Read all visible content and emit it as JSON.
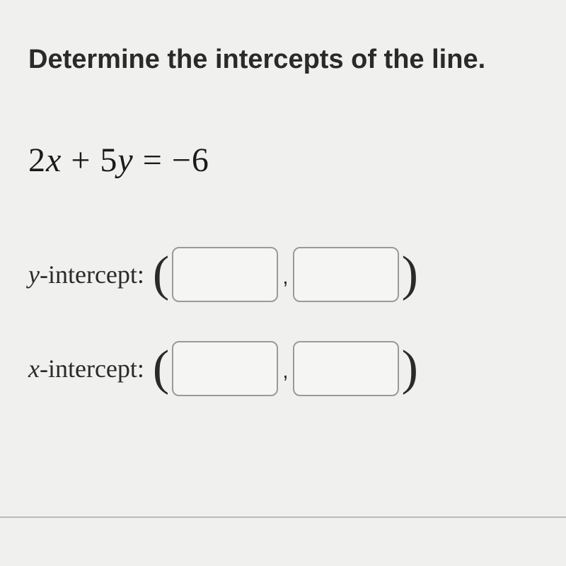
{
  "prompt": "Determine the intercepts of the line.",
  "equation": {
    "lhs_coef1": "2",
    "lhs_var1": "x",
    "lhs_op": " + ",
    "lhs_coef2": "5",
    "lhs_var2": "y",
    "eq": " = ",
    "rhs": "−6"
  },
  "rows": [
    {
      "label_var": "y",
      "label_text": "-intercept:"
    },
    {
      "label_var": "x",
      "label_text": "-intercept:"
    }
  ],
  "colors": {
    "background": "#f0f0ee",
    "text": "#2a2a2a",
    "input_border": "#9a9a9a",
    "input_bg": "#f5f5f3",
    "divider": "#bbb"
  },
  "typography": {
    "prompt_fontsize": 38,
    "prompt_weight": 700,
    "equation_fontsize": 48,
    "label_fontsize": 36,
    "paren_fontsize": 70,
    "input_width": 150,
    "input_height": 78,
    "input_radius": 10
  }
}
